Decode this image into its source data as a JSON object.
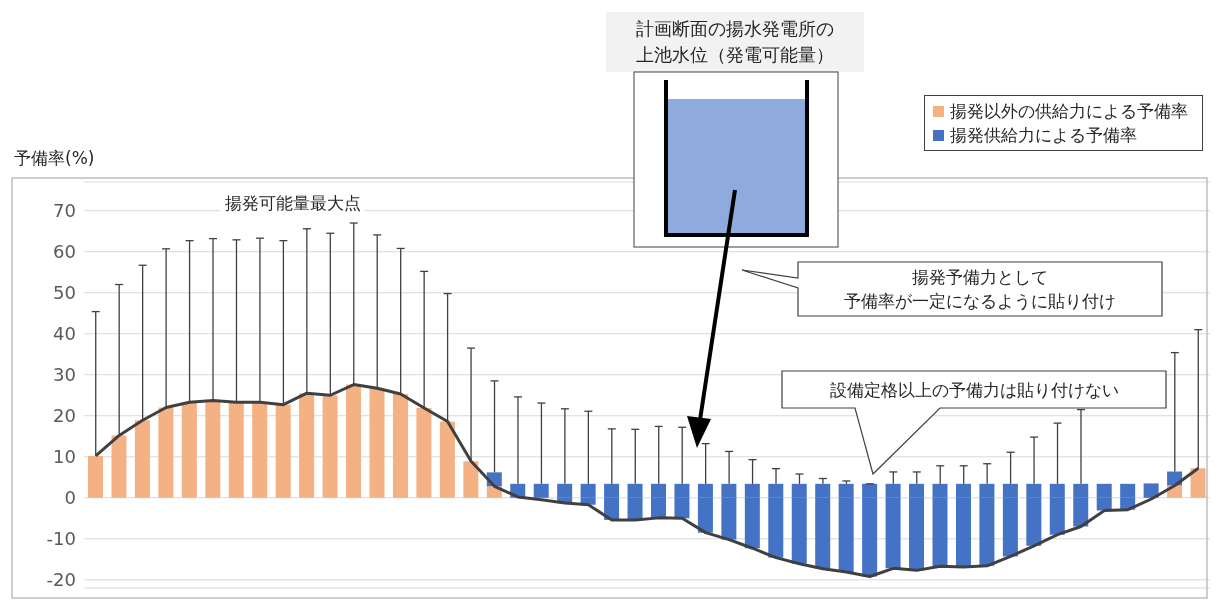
{
  "chart_data": {
    "type": "bar",
    "stacked": true,
    "ylabel": "予備率(%)",
    "categories": [
      null,
      null,
      null,
      null,
      null,
      null,
      null,
      null,
      null,
      null,
      null,
      null,
      null,
      null,
      null,
      null,
      null,
      null,
      null,
      null,
      null,
      null,
      null,
      null,
      null,
      null,
      null,
      null,
      null,
      null,
      null,
      null,
      null,
      null,
      null,
      null,
      null,
      null,
      null,
      null,
      null,
      null,
      null,
      null,
      null,
      null,
      null,
      null
    ],
    "series": [
      {
        "name": "揚発以外の供給力による予備率",
        "color": "#f4b183",
        "values": [
          10.2,
          15.2,
          18.9,
          22,
          23.3,
          23.7,
          23.3,
          23.3,
          22.7,
          25.5,
          25,
          27.6,
          26.7,
          25.3,
          21.9,
          18.6,
          8.9,
          2.8,
          null,
          null,
          null,
          null,
          null,
          null,
          null,
          null,
          null,
          null,
          null,
          null,
          null,
          null,
          null,
          null,
          null,
          null,
          null,
          null,
          null,
          null,
          null,
          null,
          null,
          null,
          null,
          null,
          3,
          7.2
        ],
        "errors": [
          [
            10.2,
            45.4
          ],
          [
            15.2,
            52
          ],
          [
            18.9,
            56.7
          ],
          [
            22,
            60.7
          ],
          [
            23.3,
            62.7
          ],
          [
            23.7,
            63.2
          ],
          [
            23.3,
            62.9
          ],
          [
            23.3,
            63.3
          ],
          [
            22.7,
            62.7
          ],
          [
            25.5,
            65.6
          ],
          [
            25,
            64.5
          ],
          [
            27.6,
            67
          ],
          [
            26.7,
            64.1
          ],
          [
            25.3,
            60.8
          ],
          [
            21.9,
            55.2
          ],
          [
            18.6,
            49.8
          ],
          [
            8.9,
            36.5
          ],
          null,
          null,
          null,
          null,
          null,
          null,
          null,
          null,
          null,
          null,
          null,
          null,
          null,
          null,
          null,
          null,
          null,
          null,
          null,
          null,
          null,
          null,
          null,
          null,
          null,
          null,
          null,
          null,
          null,
          null,
          [
            7.2,
            41
          ]
        ]
      },
      {
        "name": "揚発供給力による予備率",
        "color": "#4472c4",
        "values": [
          null,
          null,
          null,
          null,
          null,
          null,
          null,
          null,
          null,
          null,
          null,
          null,
          null,
          null,
          null,
          null,
          null,
          3.4,
          3.4,
          3.4,
          3.4,
          3.4,
          3.4,
          3.4,
          3.4,
          3.4,
          3.4,
          3.4,
          3.4,
          3.4,
          3.4,
          3.4,
          3.4,
          3.4,
          3.4,
          3.4,
          3.4,
          3.4,
          3.4,
          3.4,
          3.4,
          3.4,
          3.4,
          3.4,
          3.4,
          3.5,
          3.4,
          null
        ],
        "errors": [
          null,
          null,
          null,
          null,
          null,
          null,
          null,
          null,
          null,
          null,
          null,
          null,
          null,
          null,
          null,
          null,
          null,
          [
            6.2,
            28.5
          ],
          [
            3.4,
            24.6
          ],
          [
            3.4,
            23.1
          ],
          [
            3.4,
            21.7
          ],
          [
            3.4,
            21.1
          ],
          [
            3.4,
            16.8
          ],
          [
            3.4,
            16.7
          ],
          [
            3.4,
            17.4
          ],
          [
            3.4,
            17.2
          ],
          [
            3.4,
            13.2
          ],
          [
            3.4,
            11.3
          ],
          [
            3.4,
            9.3
          ],
          [
            3.4,
            7.1
          ],
          [
            3.4,
            5.8
          ],
          [
            3.4,
            4.7
          ],
          [
            3.4,
            4.1
          ],
          [
            3.4,
            3.4
          ],
          [
            3.4,
            6.3
          ],
          [
            3.4,
            6.3
          ],
          [
            3.4,
            7.8
          ],
          [
            3.4,
            7.8
          ],
          [
            3.4,
            8.3
          ],
          [
            3.4,
            11.1
          ],
          [
            3.4,
            14.8
          ],
          [
            3.4,
            18.2
          ],
          [
            3.4,
            21.5
          ],
          null,
          null,
          null,
          [
            6.4,
            35.4
          ],
          null
        ]
      },
      {
        "color": "#4472c4",
        "values": [
          null,
          null,
          null,
          null,
          null,
          null,
          null,
          null,
          null,
          null,
          null,
          null,
          null,
          null,
          null,
          null,
          null,
          null,
          null,
          null,
          -1.3,
          -1.7,
          -5.4,
          -5.4,
          -4.9,
          -5,
          -8.5,
          -10.2,
          -12.3,
          -14.6,
          -16.1,
          -17.3,
          -18.1,
          -19.2,
          -17.2,
          -17.7,
          -16.7,
          -16.9,
          -16.6,
          -14.3,
          -11.7,
          -9,
          -7,
          -3.1,
          -2.9,
          null,
          null,
          null
        ]
      },
      {
        "type": "line",
        "color": "#404040",
        "values": [
          10.2,
          15.2,
          18.9,
          22,
          23.3,
          23.7,
          23.3,
          23.3,
          22.7,
          25.5,
          25,
          27.6,
          26.7,
          25.3,
          21.9,
          18.6,
          8.9,
          2.8,
          0.2,
          -0.5,
          -1.3,
          -1.7,
          -5.4,
          -5.4,
          -4.9,
          -5,
          -8.5,
          -10.2,
          -12.3,
          -14.6,
          -16.1,
          -17.3,
          -18.1,
          -19.2,
          -17.2,
          -17.7,
          -16.7,
          -16.9,
          -16.6,
          -14.3,
          -11.7,
          -9,
          -7,
          -3.1,
          -2.9,
          -0.3,
          3,
          7.2
        ]
      }
    ],
    "ylim": [
      -22,
      77
    ],
    "yticks": [
      -20,
      -10,
      0,
      10,
      20,
      30,
      40,
      50,
      60,
      70
    ],
    "grid": "y",
    "tick_labels": "y",
    "legend": "top right",
    "marker": "none",
    "annotations": [
      "揚発可能量最大点",
      "計画断面の揚水発電所の",
      "上池水位（発電可能量）",
      "揚発予備力として",
      "予備率が一定になるように貼り付け",
      "設備定格以上の予備力は貼り付けない"
    ]
  }
}
